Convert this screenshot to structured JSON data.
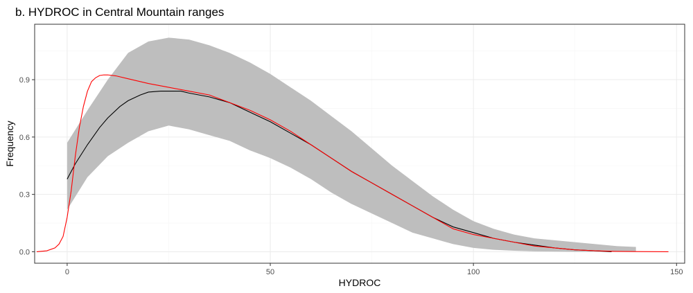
{
  "chart_data": {
    "type": "line",
    "title": "b. HYDROC in Central Mountain ranges",
    "xlabel": "HYDROC",
    "ylabel": "Frequency",
    "xlim": [
      -8,
      152
    ],
    "ylim": [
      -0.06,
      1.19
    ],
    "x_ticks": [
      0,
      50,
      100,
      150
    ],
    "x_tick_labels": [
      "0",
      "50",
      "100",
      "150"
    ],
    "y_ticks": [
      0.0,
      0.3,
      0.6,
      0.9
    ],
    "y_tick_labels": [
      "0.0",
      "0.3",
      "0.6",
      "0.9"
    ],
    "grid": true,
    "legend": "none",
    "colors": {
      "band": "#bebebe",
      "mean": "#000000",
      "observed": "#ff0000",
      "grid_major": "#ebebeb",
      "grid_minor": "#f5f5f5",
      "panel_border": "#333333"
    },
    "band": {
      "x": [
        0,
        5,
        10,
        15,
        20,
        25,
        30,
        35,
        40,
        45,
        50,
        55,
        60,
        65,
        70,
        75,
        80,
        85,
        90,
        95,
        100,
        105,
        110,
        115,
        120,
        125,
        130,
        135,
        140
      ],
      "lower": [
        0.22,
        0.39,
        0.5,
        0.57,
        0.63,
        0.66,
        0.64,
        0.61,
        0.58,
        0.53,
        0.49,
        0.44,
        0.38,
        0.31,
        0.25,
        0.2,
        0.15,
        0.1,
        0.07,
        0.04,
        0.02,
        0.01,
        0.005,
        0.002,
        0.001,
        0.0,
        0.0,
        0.0,
        0.0
      ],
      "upper": [
        0.57,
        0.74,
        0.9,
        1.04,
        1.1,
        1.12,
        1.11,
        1.08,
        1.04,
        0.99,
        0.93,
        0.86,
        0.79,
        0.71,
        0.63,
        0.54,
        0.45,
        0.37,
        0.29,
        0.22,
        0.16,
        0.12,
        0.09,
        0.07,
        0.06,
        0.05,
        0.04,
        0.03,
        0.025
      ]
    },
    "series": [
      {
        "x": [
          0,
          2,
          5,
          8,
          10,
          13,
          15,
          18,
          20,
          23,
          25,
          28,
          30,
          35,
          40,
          45,
          50,
          55,
          60,
          65,
          70,
          75,
          80,
          85,
          90,
          95,
          100,
          105,
          110,
          115,
          120,
          125,
          130,
          134
        ],
        "values": [
          0.38,
          0.46,
          0.56,
          0.65,
          0.7,
          0.76,
          0.79,
          0.82,
          0.835,
          0.84,
          0.84,
          0.84,
          0.83,
          0.81,
          0.78,
          0.73,
          0.68,
          0.62,
          0.56,
          0.49,
          0.42,
          0.36,
          0.3,
          0.24,
          0.18,
          0.13,
          0.1,
          0.07,
          0.05,
          0.035,
          0.02,
          0.01,
          0.005,
          0.0
        ]
      },
      {
        "x": [
          -7.5,
          -5,
          -3,
          -2,
          -1,
          0,
          1,
          2,
          3,
          4,
          5,
          6,
          7,
          8,
          9,
          10,
          12,
          15,
          20,
          25,
          30,
          35,
          40,
          45,
          50,
          55,
          60,
          65,
          70,
          75,
          80,
          85,
          90,
          95,
          100,
          105,
          110,
          115,
          120,
          125,
          130,
          135,
          140,
          148
        ],
        "values": [
          0.0,
          0.005,
          0.02,
          0.04,
          0.08,
          0.18,
          0.32,
          0.5,
          0.65,
          0.76,
          0.84,
          0.89,
          0.91,
          0.922,
          0.925,
          0.925,
          0.92,
          0.905,
          0.88,
          0.86,
          0.84,
          0.82,
          0.78,
          0.74,
          0.69,
          0.63,
          0.56,
          0.49,
          0.42,
          0.36,
          0.3,
          0.24,
          0.18,
          0.12,
          0.09,
          0.07,
          0.05,
          0.03,
          0.02,
          0.01,
          0.005,
          0.002,
          0.001,
          0.0
        ]
      }
    ]
  }
}
